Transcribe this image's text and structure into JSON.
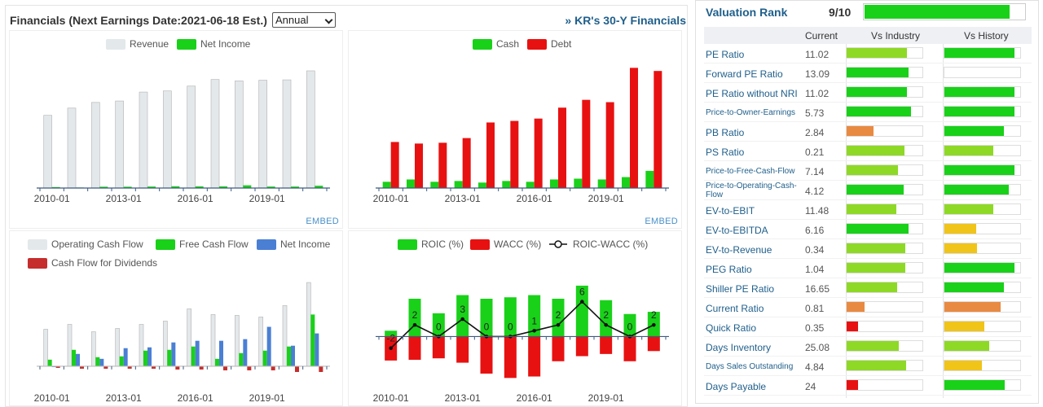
{
  "header": {
    "title": "Financials (Next Earnings Date:2021-06-18 Est.)",
    "period_select": "Annual",
    "link_30y": "» KR's 30-Y Financials"
  },
  "embed_label": "EMBED",
  "charts": [
    {
      "type": "bar",
      "categories": [
        "2010-01",
        "2011-01",
        "2012-01",
        "2013-01",
        "2014-01",
        "2015-01",
        "2016-01",
        "2017-01",
        "2018-01",
        "2019-01",
        "2020-01",
        "2021-01"
      ],
      "x_tick_labels": [
        "2010-01",
        "2013-01",
        "2016-01",
        "2019-01"
      ],
      "series": [
        {
          "name": "Revenue",
          "color": "#e3e8ea",
          "values": [
            82.2,
            90.4,
            96.8,
            98.4,
            108.5,
            109.8,
            115.3,
            122.7,
            121.2,
            121.9,
            122.3,
            132.5
          ]
        },
        {
          "name": "Net Income",
          "color": "#19d119",
          "values": [
            1.1,
            0.6,
            1.5,
            1.5,
            1.7,
            2.0,
            1.9,
            1.9,
            3.1,
            1.7,
            1.7,
            2.6
          ]
        }
      ],
      "ylim": [
        0,
        150
      ]
    },
    {
      "type": "bar",
      "categories": [
        "2010-01",
        "2011-01",
        "2012-01",
        "2013-01",
        "2014-01",
        "2015-01",
        "2016-01",
        "2017-01",
        "2018-01",
        "2019-01",
        "2020-01",
        "2021-01"
      ],
      "x_tick_labels": [
        "2010-01",
        "2013-01",
        "2016-01",
        "2019-01"
      ],
      "series": [
        {
          "name": "Cash",
          "color": "#19d119",
          "values": [
            0.8,
            1.1,
            0.8,
            0.9,
            0.7,
            0.9,
            0.8,
            1.1,
            1.2,
            1.1,
            1.4,
            2.2
          ]
        },
        {
          "name": "Debt",
          "color": "#e81111",
          "values": [
            5.9,
            5.7,
            5.8,
            6.4,
            8.4,
            8.6,
            8.9,
            10.3,
            11.3,
            11.0,
            15.4,
            15.0
          ]
        }
      ],
      "ylim": [
        0,
        17
      ]
    },
    {
      "type": "bar",
      "categories": [
        "2010-01",
        "2011-01",
        "2012-01",
        "2013-01",
        "2014-01",
        "2015-01",
        "2016-01",
        "2017-01",
        "2018-01",
        "2019-01",
        "2020-01",
        "2021-01"
      ],
      "x_tick_labels": [
        "2010-01",
        "2013-01",
        "2016-01",
        "2019-01"
      ],
      "series": [
        {
          "name": "Operating Cash Flow",
          "color": "#e3e8ea",
          "values": [
            4.5,
            5.1,
            4.2,
            4.6,
            5.1,
            5.5,
            7.0,
            6.3,
            6.2,
            6.0,
            7.4,
            10.2
          ]
        },
        {
          "name": "Free Cash Flow",
          "color": "#19d119",
          "values": [
            0.8,
            2.0,
            1.1,
            1.2,
            1.9,
            2.0,
            2.4,
            0.9,
            1.6,
            1.9,
            2.4,
            6.3
          ]
        },
        {
          "name": "Net Income",
          "color": "#4a7fd4",
          "values": [
            0.0,
            1.5,
            0.9,
            2.2,
            2.3,
            2.9,
            3.1,
            3.1,
            3.3,
            4.8,
            2.5,
            4.0
          ]
        },
        {
          "name": "Cash Flow for Dividends",
          "color": "#c62d2d",
          "values": [
            -0.2,
            -0.3,
            -0.3,
            -0.3,
            -0.3,
            -0.4,
            -0.4,
            -0.5,
            -0.5,
            -0.5,
            -0.7,
            -0.7
          ]
        }
      ],
      "ylim": [
        -1,
        11
      ]
    },
    {
      "type": "bar",
      "categories": [
        "2010-01",
        "2011-01",
        "2012-01",
        "2013-01",
        "2014-01",
        "2015-01",
        "2016-01",
        "2017-01",
        "2018-01",
        "2019-01",
        "2020-01",
        "2021-01"
      ],
      "x_tick_labels": [
        "2010-01",
        "2013-01",
        "2016-01",
        "2019-01"
      ],
      "series": [
        {
          "name": "ROIC (%)",
          "color": "#19d119",
          "values": [
            0.8,
            5.2,
            3.2,
            5.7,
            5.2,
            5.4,
            5.7,
            5.2,
            7.0,
            5.0,
            3.1,
            3.4
          ]
        },
        {
          "name": "WACC (%)",
          "color": "#e81111",
          "values": [
            -3.3,
            -3.2,
            -3.0,
            -3.6,
            -5.1,
            -5.7,
            -5.5,
            -3.4,
            -2.7,
            -2.4,
            -3.4,
            -2.0
          ]
        },
        {
          "name": "ROIC-WACC (%)",
          "color": "#111111",
          "type": "line",
          "values": [
            -2,
            2,
            0,
            3,
            0,
            0,
            1,
            2,
            6,
            2,
            0,
            2
          ]
        }
      ],
      "point_labels": [
        "-2",
        "2",
        "0",
        "3",
        "0",
        "0",
        "1",
        "2",
        "6",
        "2",
        "0",
        "2"
      ],
      "ylim": [
        -6,
        8
      ]
    }
  ],
  "valuation": {
    "label": "Valuation Rank",
    "score": "9/10",
    "score_fraction": 0.9,
    "columns": [
      "Current",
      "Vs Industry",
      "Vs History"
    ],
    "rows": [
      {
        "name": "PE Ratio",
        "value": "11.02",
        "industry": 0.8,
        "industry_color": "#8ed925",
        "history": 0.93,
        "history_color": "#19d119"
      },
      {
        "name": "Forward PE Ratio",
        "value": "13.09",
        "industry": 0.82,
        "industry_color": "#19d119",
        "history": 0.0,
        "history_color": "#19d119"
      },
      {
        "name": "PE Ratio without NRI",
        "value": "11.02",
        "industry": 0.8,
        "industry_color": "#19d119",
        "history": 0.93,
        "history_color": "#19d119"
      },
      {
        "name": "Price-to-Owner-Earnings",
        "value": "5.73",
        "industry": 0.85,
        "industry_color": "#19d119",
        "history": 0.93,
        "history_color": "#19d119"
      },
      {
        "name": "PB Ratio",
        "value": "2.84",
        "industry": 0.36,
        "industry_color": "#e98a42",
        "history": 0.78,
        "history_color": "#19d119"
      },
      {
        "name": "PS Ratio",
        "value": "0.21",
        "industry": 0.76,
        "industry_color": "#8ed925",
        "history": 0.64,
        "history_color": "#8ed925"
      },
      {
        "name": "Price-to-Free-Cash-Flow",
        "value": "7.14",
        "industry": 0.68,
        "industry_color": "#8ed925",
        "history": 0.92,
        "history_color": "#19d119"
      },
      {
        "name": "Price-to-Operating-Cash-Flow",
        "value": "4.12",
        "industry": 0.75,
        "industry_color": "#19d119",
        "history": 0.85,
        "history_color": "#19d119"
      },
      {
        "name": "EV-to-EBIT",
        "value": "11.48",
        "industry": 0.66,
        "industry_color": "#8ed925",
        "history": 0.64,
        "history_color": "#8ed925"
      },
      {
        "name": "EV-to-EBITDA",
        "value": "6.16",
        "industry": 0.82,
        "industry_color": "#19d119",
        "history": 0.42,
        "history_color": "#f0c419"
      },
      {
        "name": "EV-to-Revenue",
        "value": "0.34",
        "industry": 0.77,
        "industry_color": "#8ed925",
        "history": 0.43,
        "history_color": "#f0c419"
      },
      {
        "name": "PEG Ratio",
        "value": "1.04",
        "industry": 0.77,
        "industry_color": "#8ed925",
        "history": 0.93,
        "history_color": "#19d119"
      },
      {
        "name": "Shiller PE Ratio",
        "value": "16.65",
        "industry": 0.67,
        "industry_color": "#8ed925",
        "history": 0.79,
        "history_color": "#19d119"
      },
      {
        "name": "Current Ratio",
        "value": "0.81",
        "industry": 0.24,
        "industry_color": "#e98a42",
        "history": 0.74,
        "history_color": "#e98a42"
      },
      {
        "name": "Quick Ratio",
        "value": "0.35",
        "industry": 0.15,
        "industry_color": "#e81111",
        "history": 0.53,
        "history_color": "#f0c419"
      },
      {
        "name": "Days Inventory",
        "value": "25.08",
        "industry": 0.69,
        "industry_color": "#8ed925",
        "history": 0.59,
        "history_color": "#8ed925"
      },
      {
        "name": "Days Sales Outstanding",
        "value": "4.84",
        "industry": 0.79,
        "industry_color": "#8ed925",
        "history": 0.49,
        "history_color": "#f0c419"
      },
      {
        "name": "Days Payable",
        "value": "24",
        "industry": 0.15,
        "industry_color": "#e81111",
        "history": 0.8,
        "history_color": "#19d119"
      }
    ]
  }
}
